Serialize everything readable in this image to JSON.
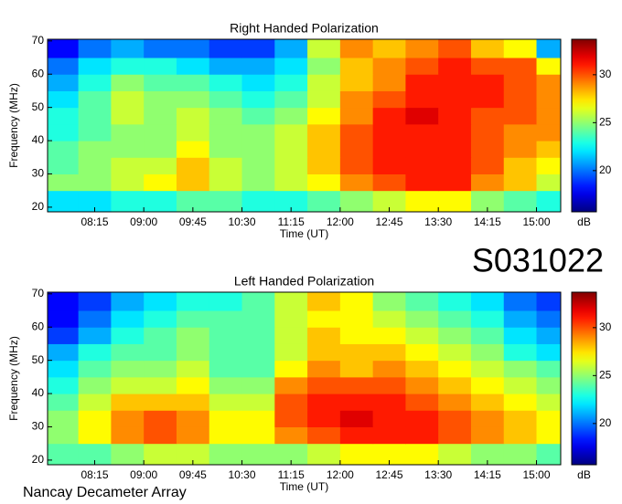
{
  "id_label": "S031022",
  "footer": "Nancay Decameter Array",
  "chart_data": [
    {
      "type": "heatmap",
      "title": "Right Handed Polarization",
      "xlabel": "Time (UT)",
      "ylabel": "Frequency (MHz)",
      "colorbar_label": "dB",
      "colormap": "jet",
      "xlim": [
        7.53,
        15.37
      ],
      "xticks": [
        {
          "value": 8.25,
          "label": "08:15"
        },
        {
          "value": 9,
          "label": "09:00"
        },
        {
          "value": 9.75,
          "label": "09:45"
        },
        {
          "value": 10.5,
          "label": "10:30"
        },
        {
          "value": 11.25,
          "label": "11:15"
        },
        {
          "value": 12,
          "label": "12:00"
        },
        {
          "value": 12.75,
          "label": "12:45"
        },
        {
          "value": 13.5,
          "label": "13:30"
        },
        {
          "value": 14.25,
          "label": "14:15"
        },
        {
          "value": 15,
          "label": "15:00"
        }
      ],
      "ylim": [
        18.6,
        70.5
      ],
      "yticks": [
        20,
        30,
        40,
        50,
        60,
        70
      ],
      "clim": [
        15.7,
        33.7
      ],
      "cticks": [
        20,
        25,
        30
      ],
      "xbins": [
        7.53,
        8,
        8.5,
        9,
        9.5,
        10,
        10.5,
        11,
        11.5,
        12,
        12.5,
        13,
        13.5,
        14,
        14.5,
        15,
        15.37
      ],
      "ybins": [
        18.6,
        25,
        30,
        35,
        40,
        45,
        50,
        55,
        60,
        65,
        70.5
      ],
      "z": [
        [
          22,
          22,
          23,
          23,
          24,
          24,
          23,
          23,
          24,
          25,
          26,
          27,
          27,
          25,
          24,
          23
        ],
        [
          25,
          25,
          26,
          27,
          28,
          26,
          25,
          26,
          27,
          29,
          30,
          31,
          31,
          29,
          28,
          26
        ],
        [
          24,
          25,
          26,
          26,
          28,
          26,
          25,
          26,
          28,
          30,
          31,
          31,
          31,
          30,
          28,
          27
        ],
        [
          24,
          25,
          25,
          25,
          27,
          25,
          25,
          26,
          28,
          30,
          31,
          31,
          31,
          30,
          29,
          28
        ],
        [
          23,
          24,
          25,
          25,
          26,
          25,
          25,
          26,
          28,
          30,
          31,
          31,
          31,
          30,
          29,
          29
        ],
        [
          23,
          24,
          26,
          25,
          26,
          25,
          24,
          25,
          27,
          29,
          31,
          32,
          31,
          30,
          30,
          29
        ],
        [
          22,
          24,
          26,
          25,
          25,
          24,
          23,
          24,
          26,
          29,
          30,
          31,
          31,
          31,
          30,
          29
        ],
        [
          21,
          23,
          25,
          24,
          24,
          23,
          22,
          23,
          26,
          28,
          29,
          31,
          31,
          31,
          30,
          29
        ],
        [
          20,
          22,
          23,
          23,
          22,
          21,
          21,
          22,
          25,
          28,
          29,
          30,
          31,
          30,
          30,
          27
        ],
        [
          18,
          20,
          21,
          20,
          20,
          19,
          19,
          21,
          26,
          29,
          28,
          29,
          30,
          28,
          27,
          21
        ]
      ]
    },
    {
      "type": "heatmap",
      "title": "Left Handed Polarization",
      "xlabel": "Time (UT)",
      "ylabel": "Frequency (MHz)",
      "colorbar_label": "dB",
      "colormap": "jet",
      "xlim": [
        7.53,
        15.37
      ],
      "xticks": [
        {
          "value": 8.25,
          "label": "08:15"
        },
        {
          "value": 9,
          "label": "09:00"
        },
        {
          "value": 9.75,
          "label": "09:45"
        },
        {
          "value": 10.5,
          "label": "10:30"
        },
        {
          "value": 11.25,
          "label": "11:15"
        },
        {
          "value": 12,
          "label": "12:00"
        },
        {
          "value": 12.75,
          "label": "12:45"
        },
        {
          "value": 13.5,
          "label": "13:30"
        },
        {
          "value": 14.25,
          "label": "14:15"
        },
        {
          "value": 15,
          "label": "15:00"
        }
      ],
      "ylim": [
        18.6,
        70.5
      ],
      "yticks": [
        20,
        30,
        40,
        50,
        60,
        70
      ],
      "clim": [
        15.7,
        33.7
      ],
      "cticks": [
        20,
        25,
        30
      ],
      "xbins": [
        7.53,
        8,
        8.5,
        9,
        9.5,
        10,
        10.5,
        11,
        11.5,
        12,
        12.5,
        13,
        13.5,
        14,
        14.5,
        15,
        15.37
      ],
      "ybins": [
        18.6,
        25,
        30,
        35,
        40,
        45,
        50,
        55,
        60,
        65,
        70.5
      ],
      "z": [
        [
          24,
          24,
          25,
          26,
          26,
          25,
          25,
          25,
          26,
          27,
          27,
          27,
          26,
          25,
          25,
          24
        ],
        [
          25,
          27,
          29,
          30,
          29,
          27,
          27,
          29,
          30,
          31,
          31,
          31,
          30,
          29,
          28,
          27
        ],
        [
          25,
          27,
          29,
          30,
          29,
          27,
          27,
          30,
          31,
          32,
          31,
          31,
          30,
          29,
          28,
          27
        ],
        [
          24,
          26,
          28,
          28,
          28,
          26,
          26,
          30,
          31,
          31,
          31,
          30,
          29,
          28,
          27,
          26
        ],
        [
          23,
          25,
          26,
          26,
          27,
          25,
          25,
          29,
          30,
          30,
          30,
          29,
          28,
          27,
          26,
          25
        ],
        [
          22,
          24,
          25,
          25,
          26,
          24,
          24,
          27,
          29,
          28,
          29,
          28,
          27,
          26,
          25,
          24
        ],
        [
          21,
          23,
          24,
          24,
          25,
          24,
          24,
          26,
          28,
          28,
          28,
          27,
          26,
          25,
          23,
          22
        ],
        [
          19,
          21,
          23,
          24,
          25,
          24,
          24,
          26,
          28,
          27,
          27,
          26,
          25,
          24,
          22,
          21
        ],
        [
          18,
          20,
          22,
          23,
          24,
          24,
          24,
          26,
          27,
          27,
          26,
          25,
          24,
          23,
          21,
          20
        ],
        [
          18,
          19,
          21,
          22,
          23,
          23,
          24,
          26,
          28,
          27,
          25,
          24,
          23,
          22,
          20,
          19
        ]
      ]
    }
  ]
}
